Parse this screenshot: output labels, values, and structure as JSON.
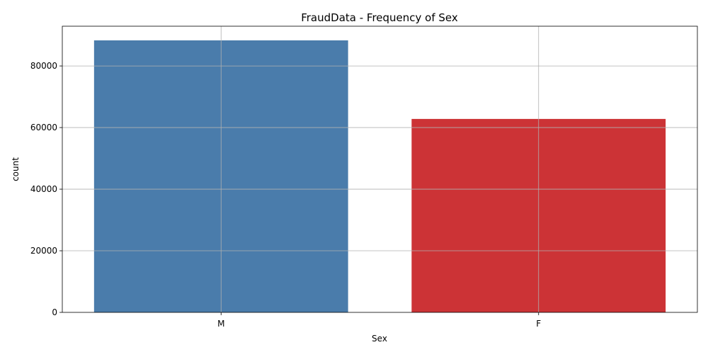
{
  "chart_data": {
    "type": "bar",
    "title": "FraudData - Frequency of Sex",
    "xlabel": "Sex",
    "ylabel": "count",
    "categories": [
      "M",
      "F"
    ],
    "values": [
      88300,
      62800
    ],
    "colors": [
      "#4a7cab",
      "#cc3336"
    ],
    "ylim": [
      0,
      92900
    ],
    "yticks": [
      0,
      20000,
      40000,
      60000,
      80000
    ],
    "ytick_labels": [
      "0",
      "20000",
      "40000",
      "60000",
      "80000"
    ],
    "grid": true
  }
}
